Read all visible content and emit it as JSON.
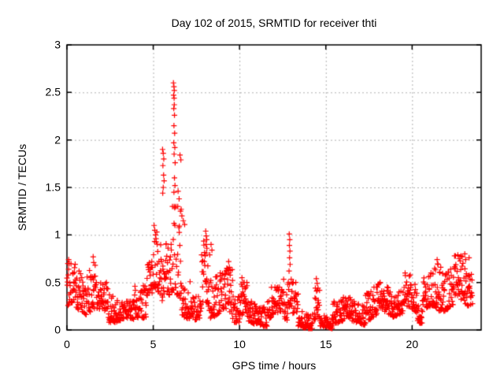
{
  "colors": {
    "background": "#ffffff",
    "axis": "#000000",
    "grid": "#b0b0b0",
    "marker": "#ff0000",
    "text": "#000000"
  },
  "chart_data": {
    "type": "scatter",
    "title": "Day 102 of 2015, SRMTID for receiver thti",
    "xlabel": "GPS time / hours",
    "ylabel": "SRMTID / TECUs",
    "xlim": [
      0,
      24
    ],
    "ylim": [
      0,
      3
    ],
    "xticks": {
      "values": [
        0,
        5,
        10,
        15,
        20
      ],
      "labels": [
        "0",
        "5",
        "10",
        "15",
        "20"
      ]
    },
    "yticks": {
      "values": [
        0,
        0.5,
        1,
        1.5,
        2,
        2.5,
        3
      ],
      "labels": [
        "0",
        "0.5",
        "1",
        "1.5",
        "2",
        "2.5",
        "3"
      ]
    },
    "grid": true,
    "grid_style": "dotted",
    "legend": "none",
    "marker": {
      "shape": "plus",
      "color": "#ff0000",
      "size": 7
    },
    "time_start_hours": 0,
    "time_end_hours": 23.5,
    "peak": {
      "x": 6.2,
      "y": 2.6
    },
    "band_segments": [
      [
        0.0,
        0.5,
        0.2,
        0.72,
        33
      ],
      [
        0.5,
        1.3,
        0.15,
        0.62,
        52
      ],
      [
        1.3,
        1.7,
        0.2,
        0.7,
        26
      ],
      [
        1.7,
        2.4,
        0.14,
        0.5,
        46
      ],
      [
        2.4,
        3.1,
        0.1,
        0.42,
        46
      ],
      [
        3.1,
        3.9,
        0.07,
        0.3,
        52
      ],
      [
        3.9,
        4.6,
        0.15,
        0.52,
        46
      ],
      [
        4.6,
        5.0,
        0.3,
        0.72,
        26
      ],
      [
        5.0,
        5.5,
        0.35,
        1.05,
        33
      ],
      [
        5.5,
        6.1,
        0.35,
        1.0,
        39
      ],
      [
        6.1,
        6.65,
        0.1,
        1.3,
        36
      ],
      [
        6.65,
        7.2,
        0.15,
        0.6,
        36
      ],
      [
        7.2,
        7.8,
        0.06,
        0.35,
        39
      ],
      [
        7.8,
        8.3,
        0.2,
        0.95,
        33
      ],
      [
        8.3,
        9.2,
        0.15,
        0.6,
        59
      ],
      [
        9.2,
        9.6,
        0.1,
        0.65,
        26
      ],
      [
        9.6,
        10.0,
        0.1,
        0.4,
        26
      ],
      [
        10.0,
        10.45,
        0.1,
        0.5,
        29
      ],
      [
        10.45,
        11.6,
        0.05,
        0.3,
        75
      ],
      [
        11.6,
        12.4,
        0.08,
        0.45,
        52
      ],
      [
        12.4,
        12.8,
        0.1,
        0.55,
        26
      ],
      [
        12.8,
        13.05,
        0.25,
        0.6,
        16
      ],
      [
        13.05,
        13.4,
        0.1,
        0.5,
        23
      ],
      [
        13.4,
        14.25,
        0.02,
        0.2,
        55
      ],
      [
        14.3,
        14.65,
        0.08,
        0.45,
        23
      ],
      [
        14.65,
        15.4,
        0.01,
        0.15,
        49
      ],
      [
        15.4,
        16.5,
        0.08,
        0.35,
        72
      ],
      [
        16.5,
        17.3,
        0.05,
        0.3,
        52
      ],
      [
        17.3,
        18.0,
        0.1,
        0.45,
        46
      ],
      [
        18.0,
        18.8,
        0.15,
        0.5,
        52
      ],
      [
        18.8,
        19.5,
        0.15,
        0.42,
        46
      ],
      [
        19.5,
        20.3,
        0.15,
        0.62,
        52
      ],
      [
        20.3,
        20.6,
        0.08,
        0.3,
        20
      ],
      [
        20.6,
        21.3,
        0.15,
        0.6,
        46
      ],
      [
        21.3,
        21.8,
        0.2,
        0.73,
        33
      ],
      [
        21.8,
        22.4,
        0.2,
        0.65,
        39
      ],
      [
        22.4,
        23.0,
        0.25,
        0.78,
        39
      ],
      [
        23.0,
        23.5,
        0.28,
        0.72,
        33
      ]
    ],
    "feature_points": [
      [
        6.17,
        2.6
      ],
      [
        6.2,
        2.56
      ],
      [
        6.22,
        2.52
      ],
      [
        6.18,
        2.47
      ],
      [
        6.21,
        2.44
      ],
      [
        6.22,
        2.37
      ],
      [
        6.19,
        2.33
      ],
      [
        6.23,
        2.26
      ],
      [
        6.2,
        2.15
      ],
      [
        6.24,
        2.07
      ],
      [
        6.19,
        1.97
      ],
      [
        6.25,
        1.92
      ],
      [
        6.21,
        1.85
      ],
      [
        6.27,
        1.76
      ],
      [
        6.23,
        1.6
      ],
      [
        6.26,
        1.52
      ],
      [
        6.2,
        1.45
      ],
      [
        5.54,
        1.9
      ],
      [
        5.58,
        1.86
      ],
      [
        5.61,
        1.8
      ],
      [
        5.56,
        1.73
      ],
      [
        5.6,
        1.63
      ],
      [
        5.63,
        1.57
      ],
      [
        5.58,
        1.5
      ],
      [
        5.55,
        1.44
      ],
      [
        6.55,
        1.84
      ],
      [
        6.6,
        1.79
      ],
      [
        6.44,
        1.46
      ],
      [
        6.5,
        1.38
      ],
      [
        6.42,
        1.3
      ],
      [
        6.58,
        1.25
      ],
      [
        6.66,
        1.2
      ],
      [
        6.74,
        1.15
      ],
      [
        6.82,
        1.11
      ],
      [
        5.05,
        1.1
      ],
      [
        5.09,
        1.05
      ],
      [
        5.13,
        1.0
      ],
      [
        5.16,
        0.96
      ],
      [
        8.04,
        1.04
      ],
      [
        8.07,
        0.99
      ],
      [
        8.1,
        0.95
      ],
      [
        8.06,
        0.9
      ],
      [
        8.11,
        0.86
      ],
      [
        8.08,
        0.81
      ],
      [
        8.35,
        0.9
      ],
      [
        8.4,
        0.84
      ],
      [
        9.37,
        0.72
      ],
      [
        9.41,
        0.66
      ],
      [
        9.39,
        0.6
      ],
      [
        12.88,
        1.01
      ],
      [
        12.91,
        0.95
      ],
      [
        12.89,
        0.89
      ],
      [
        12.92,
        0.83
      ],
      [
        12.9,
        0.76
      ],
      [
        12.93,
        0.69
      ],
      [
        12.87,
        0.62
      ],
      [
        1.52,
        0.77
      ],
      [
        1.55,
        0.71
      ],
      [
        0.1,
        0.74
      ],
      [
        0.14,
        0.7
      ],
      [
        10.14,
        0.55
      ],
      [
        10.2,
        0.5
      ],
      [
        14.45,
        0.54
      ],
      [
        14.5,
        0.49
      ],
      [
        14.55,
        0.44
      ],
      [
        21.45,
        0.74
      ],
      [
        21.5,
        0.69
      ],
      [
        22.65,
        0.79
      ],
      [
        22.72,
        0.75
      ],
      [
        22.9,
        0.77
      ],
      [
        23.05,
        0.8
      ],
      [
        23.1,
        0.74
      ],
      [
        23.3,
        0.76
      ]
    ]
  }
}
